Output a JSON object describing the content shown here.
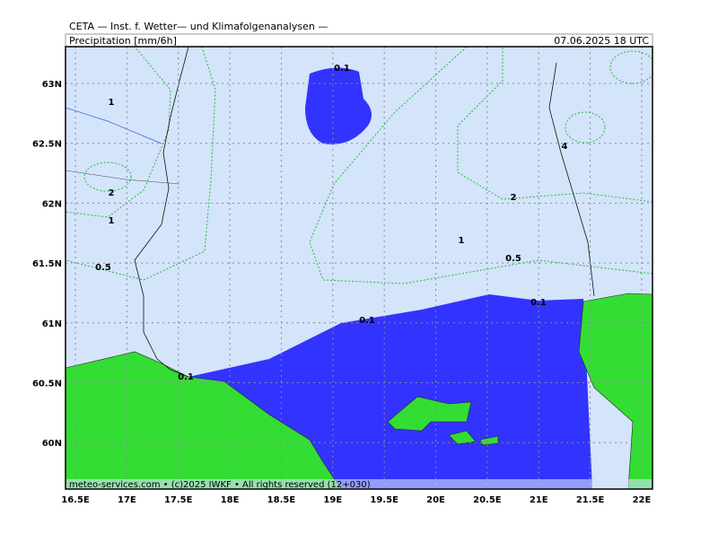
{
  "header": {
    "title": "CETA — Inst. f. Wetter— und Klimafolgenanalysen —",
    "subtitle": "Precipitation [mm/6h]",
    "date": "07.06.2025 18 UTC"
  },
  "axes": {
    "lon_labels": [
      "16.5E",
      "17E",
      "17.5E",
      "18E",
      "18.5E",
      "19E",
      "19.5E",
      "20E",
      "20.5E",
      "21E",
      "21.5E",
      "22E"
    ],
    "lat_labels": [
      "63N",
      "62.5N",
      "62N",
      "61.5N",
      "61N",
      "60.5N",
      "60N"
    ]
  },
  "contour_labels": [
    "0.1",
    "1",
    "2",
    "1",
    "0.5",
    "4",
    "2",
    "1",
    "0.5",
    "0.1",
    "0.1",
    "0.1"
  ],
  "footer": "meteo-services.com • (c)2025 IWKF • All rights reserved (12+030)"
}
